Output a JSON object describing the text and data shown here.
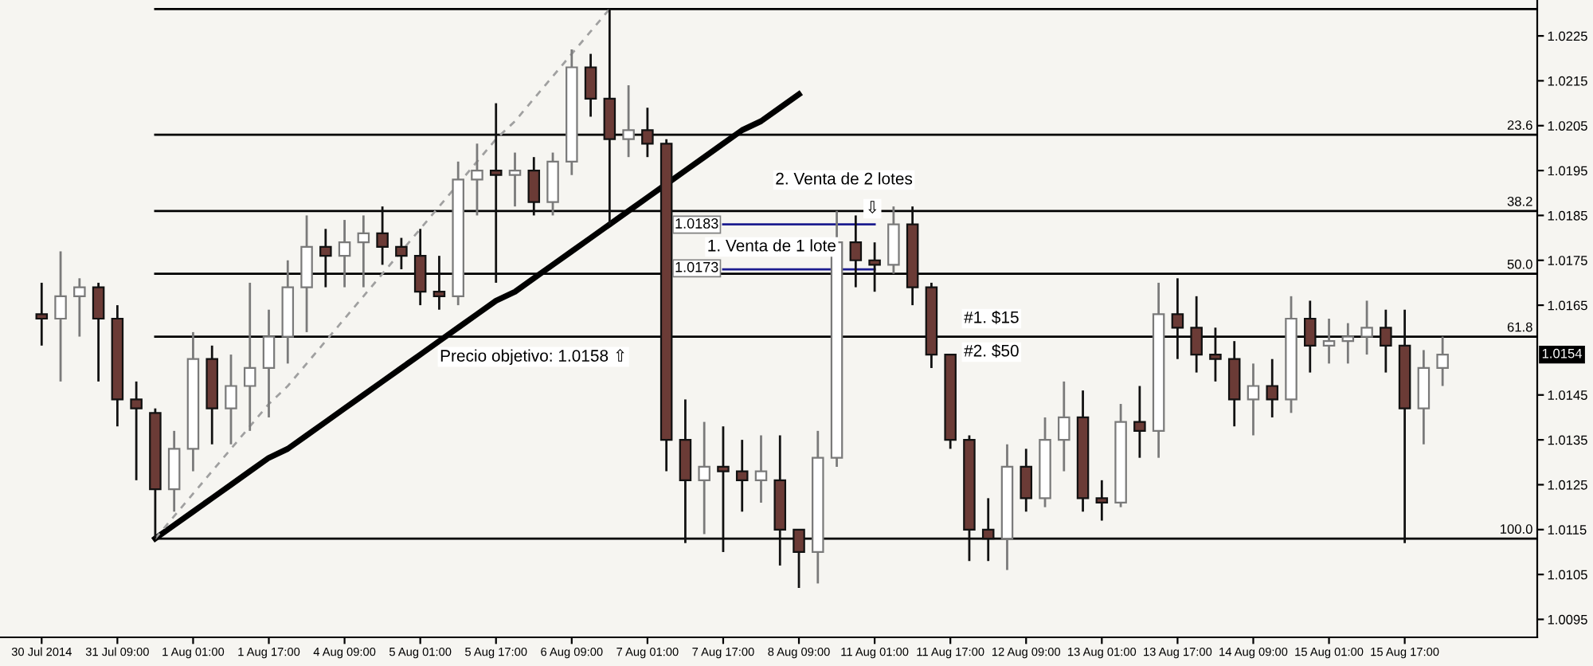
{
  "chart_data": {
    "type": "candlestick",
    "legend": "right",
    "categories": [
      "30 Jul 2014",
      null,
      null,
      null,
      "31 Jul 09:00",
      null,
      null,
      null,
      "1 Aug 01:00",
      null,
      null,
      null,
      "1 Aug 17:00",
      null,
      null,
      null,
      "4 Aug 09:00",
      null,
      null,
      null,
      "5 Aug 01:00",
      null,
      null,
      null,
      "5 Aug 17:00",
      null,
      null,
      null,
      "6 Aug 09:00",
      null,
      null,
      null,
      "7 Aug 01:00",
      null,
      null,
      null,
      "7 Aug 17:00",
      null,
      null,
      null,
      "8 Aug 09:00",
      null,
      null,
      null,
      "11 Aug 01:00",
      null,
      null,
      null,
      "11 Aug 17:00",
      null,
      null,
      null,
      "12 Aug 09:00",
      null,
      null,
      null,
      "13 Aug 01:00",
      null,
      null,
      null,
      "13 Aug 17:00",
      null,
      null,
      null,
      "14 Aug 09:00",
      null,
      null,
      null,
      "15 Aug 01:00",
      null,
      null,
      null,
      "15 Aug 17:00",
      null,
      null,
      null,
      null,
      null,
      null,
      null
    ],
    "ohlc": [
      [
        1.0163,
        1.017,
        1.0156,
        1.0162
      ],
      [
        1.0162,
        1.0177,
        1.0148,
        1.0167
      ],
      [
        1.0167,
        1.0171,
        1.0158,
        1.0169
      ],
      [
        1.0169,
        1.017,
        1.0148,
        1.0162
      ],
      [
        1.0162,
        1.0165,
        1.0138,
        1.0144
      ],
      [
        1.0144,
        1.0148,
        1.0126,
        1.0142
      ],
      [
        1.0141,
        1.0142,
        1.0113,
        1.0124
      ],
      [
        1.0124,
        1.0137,
        1.0119,
        1.0133
      ],
      [
        1.0133,
        1.0159,
        1.0128,
        1.0153
      ],
      [
        1.0153,
        1.0156,
        1.0134,
        1.0142
      ],
      [
        1.0142,
        1.0154,
        1.0134,
        1.0147
      ],
      [
        1.0147,
        1.017,
        1.0137,
        1.0151
      ],
      [
        1.0151,
        1.0164,
        1.014,
        1.0158
      ],
      [
        1.0158,
        1.0175,
        1.0152,
        1.0169
      ],
      [
        1.0169,
        1.0185,
        1.0159,
        1.0178
      ],
      [
        1.0178,
        1.0182,
        1.0169,
        1.0176
      ],
      [
        1.0176,
        1.0184,
        1.0169,
        1.0179
      ],
      [
        1.0179,
        1.0185,
        1.0169,
        1.0181
      ],
      [
        1.0181,
        1.0187,
        1.0174,
        1.0178
      ],
      [
        1.0178,
        1.018,
        1.0173,
        1.0176
      ],
      [
        1.0176,
        1.0182,
        1.0165,
        1.0168
      ],
      [
        1.0168,
        1.0176,
        1.0164,
        1.0167
      ],
      [
        1.0167,
        1.0197,
        1.0165,
        1.0193
      ],
      [
        1.0193,
        1.0201,
        1.0185,
        1.0195
      ],
      [
        1.0195,
        1.021,
        1.017,
        1.0194
      ],
      [
        1.0194,
        1.0199,
        1.0187,
        1.0195
      ],
      [
        1.0195,
        1.0198,
        1.0185,
        1.0188
      ],
      [
        1.0188,
        1.0199,
        1.0185,
        1.0197
      ],
      [
        1.0197,
        1.0222,
        1.0194,
        1.0218
      ],
      [
        1.0218,
        1.0221,
        1.0207,
        1.0211
      ],
      [
        1.0211,
        1.0231,
        1.0183,
        1.0202
      ],
      [
        1.0202,
        1.0214,
        1.0198,
        1.0204
      ],
      [
        1.0204,
        1.0209,
        1.0198,
        1.0201
      ],
      [
        1.0201,
        1.0202,
        1.0128,
        1.0135
      ],
      [
        1.0135,
        1.0144,
        1.0112,
        1.0126
      ],
      [
        1.0126,
        1.0139,
        1.0114,
        1.0129
      ],
      [
        1.0129,
        1.0138,
        1.011,
        1.0128
      ],
      [
        1.0128,
        1.0135,
        1.0119,
        1.0126
      ],
      [
        1.0126,
        1.0136,
        1.0121,
        1.0128
      ],
      [
        1.0126,
        1.0136,
        1.0107,
        1.0115
      ],
      [
        1.0115,
        1.0115,
        1.0102,
        1.011
      ],
      [
        1.011,
        1.0137,
        1.0103,
        1.0131
      ],
      [
        1.0131,
        1.0186,
        1.0129,
        1.0179
      ],
      [
        1.0179,
        1.0185,
        1.0169,
        1.0175
      ],
      [
        1.0175,
        1.0179,
        1.0168,
        1.0174
      ],
      [
        1.0174,
        1.0187,
        1.0172,
        1.0183
      ],
      [
        1.0183,
        1.0187,
        1.0165,
        1.0169
      ],
      [
        1.0169,
        1.017,
        1.0151,
        1.0154
      ],
      [
        1.0154,
        1.0154,
        1.0133,
        1.0135
      ],
      [
        1.0135,
        1.0136,
        1.0108,
        1.0115
      ],
      [
        1.0115,
        1.0122,
        1.0108,
        1.0113
      ],
      [
        1.0113,
        1.0134,
        1.0106,
        1.0129
      ],
      [
        1.0129,
        1.0133,
        1.0119,
        1.0122
      ],
      [
        1.0122,
        1.014,
        1.012,
        1.0135
      ],
      [
        1.0135,
        1.0148,
        1.0128,
        1.014
      ],
      [
        1.014,
        1.0146,
        1.0119,
        1.0122
      ],
      [
        1.0122,
        1.0126,
        1.0117,
        1.0121
      ],
      [
        1.0121,
        1.0143,
        1.012,
        1.0139
      ],
      [
        1.0139,
        1.0147,
        1.0131,
        1.0137
      ],
      [
        1.0137,
        1.017,
        1.0131,
        1.0163
      ],
      [
        1.0163,
        1.0171,
        1.0153,
        1.016
      ],
      [
        1.016,
        1.0167,
        1.015,
        1.0154
      ],
      [
        1.0154,
        1.016,
        1.0148,
        1.0153
      ],
      [
        1.0153,
        1.0157,
        1.0138,
        1.0144
      ],
      [
        1.0144,
        1.0152,
        1.0136,
        1.0147
      ],
      [
        1.0147,
        1.0153,
        1.014,
        1.0144
      ],
      [
        1.0144,
        1.0167,
        1.0141,
        1.0162
      ],
      [
        1.0162,
        1.0166,
        1.015,
        1.0156
      ],
      [
        1.0156,
        1.0162,
        1.0152,
        1.0157
      ],
      [
        1.0157,
        1.0161,
        1.0152,
        1.0158
      ],
      [
        1.0158,
        1.0166,
        1.0154,
        1.016
      ],
      [
        1.016,
        1.0164,
        1.015,
        1.0156
      ],
      [
        1.0156,
        1.0164,
        1.0112,
        1.0142
      ],
      [
        1.0142,
        1.0155,
        1.0134,
        1.0151
      ],
      [
        1.0151,
        1.0158,
        1.0147,
        1.0154
      ],
      null,
      null,
      null,
      null,
      null
    ],
    "colors": [
      "#6b3b36",
      "#ffffff",
      "#ffffff",
      "#6b3b36",
      "#6b3b36",
      "#6b3b36",
      "#6b3b36",
      "#ffffff",
      "#ffffff",
      "#6b3b36",
      "#ffffff",
      "#ffffff",
      "#ffffff",
      "#ffffff",
      "#ffffff",
      "#6b3b36",
      "#ffffff",
      "#ffffff",
      "#6b3b36",
      "#6b3b36",
      "#6b3b36",
      "#6b3b36",
      "#ffffff",
      "#ffffff",
      "#6b3b36",
      "#ffffff",
      "#6b3b36",
      "#ffffff",
      "#ffffff",
      "#6b3b36",
      "#6b3b36",
      "#ffffff",
      "#6b3b36",
      "#6b3b36",
      "#6b3b36",
      "#ffffff",
      "#6b3b36",
      "#6b3b36",
      "#ffffff",
      "#6b3b36",
      "#6b3b36",
      "#ffffff",
      "#ffffff",
      "#6b3b36",
      "#6b3b36",
      "#ffffff",
      "#6b3b36",
      "#6b3b36",
      "#6b3b36",
      "#6b3b36",
      "#6b3b36",
      "#ffffff",
      "#6b3b36",
      "#ffffff",
      "#ffffff",
      "#6b3b36",
      "#6b3b36",
      "#ffffff",
      "#6b3b36",
      "#ffffff",
      "#6b3b36",
      "#6b3b36",
      "#6b3b36",
      "#6b3b36",
      "#ffffff",
      "#6b3b36",
      "#ffffff",
      "#6b3b36",
      "#ffffff",
      "#ffffff",
      "#ffffff",
      "#6b3b36",
      "#6b3b36",
      "#ffffff",
      "#ffffff",
      null,
      null,
      null,
      null,
      null
    ],
    "series": [
      {
        "type": "line",
        "color": "#000000",
        "values": [
          null,
          null,
          null,
          null,
          null,
          null,
          1.0231,
          1.0231,
          1.0231,
          1.0231,
          1.0231,
          1.0231,
          1.0231,
          1.0231,
          1.0231,
          1.0231,
          1.0231,
          1.0231,
          1.0231,
          1.0231,
          1.0231,
          1.0231,
          1.0231,
          1.0231,
          1.0231,
          1.0231,
          1.0231,
          1.0231,
          1.0231,
          1.0231,
          1.0231,
          1.0231,
          1.0231,
          1.0231,
          1.0231,
          1.0231,
          1.0231,
          1.0231,
          1.0231,
          1.0231,
          1.0231,
          1.0231,
          1.0231,
          1.0231,
          1.0231,
          1.0231,
          1.0231,
          1.0231,
          1.0231,
          1.0231,
          1.0231,
          1.0231,
          1.0231,
          1.0231,
          1.0231,
          1.0231,
          1.0231,
          1.0231,
          1.0231,
          1.0231,
          1.0231,
          1.0231,
          1.0231,
          1.0231,
          1.0231,
          1.0231,
          1.0231,
          1.0231,
          1.0231,
          1.0231,
          1.0231,
          1.0231,
          1.0231,
          1.0231,
          1.0231,
          1.0231,
          1.0231,
          1.0231,
          1.0231,
          1.0231
        ]
      },
      {
        "type": "line",
        "name": "23.6",
        "color": "#000000",
        "values": [
          null,
          null,
          null,
          null,
          null,
          null,
          1.0203,
          1.0203,
          1.0203,
          1.0203,
          1.0203,
          1.0203,
          1.0203,
          1.0203,
          1.0203,
          1.0203,
          1.0203,
          1.0203,
          1.0203,
          1.0203,
          1.0203,
          1.0203,
          1.0203,
          1.0203,
          1.0203,
          1.0203,
          1.0203,
          1.0203,
          1.0203,
          1.0203,
          1.0203,
          1.0203,
          1.0203,
          1.0203,
          1.0203,
          1.0203,
          1.0203,
          1.0203,
          1.0203,
          1.0203,
          1.0203,
          1.0203,
          1.0203,
          1.0203,
          1.0203,
          1.0203,
          1.0203,
          1.0203,
          1.0203,
          1.0203,
          1.0203,
          1.0203,
          1.0203,
          1.0203,
          1.0203,
          1.0203,
          1.0203,
          1.0203,
          1.0203,
          1.0203,
          1.0203,
          1.0203,
          1.0203,
          1.0203,
          1.0203,
          1.0203,
          1.0203,
          1.0203,
          1.0203,
          1.0203,
          1.0203,
          1.0203,
          1.0203,
          1.0203,
          1.0203,
          1.0203,
          1.0203,
          1.0203,
          1.0203,
          1.0203
        ]
      },
      {
        "type": "line",
        "name": "38.2",
        "color": "#000000",
        "values": [
          null,
          null,
          null,
          null,
          null,
          null,
          1.0186,
          1.0186,
          1.0186,
          1.0186,
          1.0186,
          1.0186,
          1.0186,
          1.0186,
          1.0186,
          1.0186,
          1.0186,
          1.0186,
          1.0186,
          1.0186,
          1.0186,
          1.0186,
          1.0186,
          1.0186,
          1.0186,
          1.0186,
          1.0186,
          1.0186,
          1.0186,
          1.0186,
          1.0186,
          1.0186,
          1.0186,
          1.0186,
          1.0186,
          1.0186,
          1.0186,
          1.0186,
          1.0186,
          1.0186,
          1.0186,
          1.0186,
          1.0186,
          1.0186,
          1.0186,
          1.0186,
          1.0186,
          1.0186,
          1.0186,
          1.0186,
          1.0186,
          1.0186,
          1.0186,
          1.0186,
          1.0186,
          1.0186,
          1.0186,
          1.0186,
          1.0186,
          1.0186,
          1.0186,
          1.0186,
          1.0186,
          1.0186,
          1.0186,
          1.0186,
          1.0186,
          1.0186,
          1.0186,
          1.0186,
          1.0186,
          1.0186,
          1.0186,
          1.0186,
          1.0186,
          1.0186,
          1.0186,
          1.0186,
          1.0186,
          1.0186
        ]
      },
      {
        "type": "line",
        "name": "50.0",
        "color": "#000000",
        "values": [
          null,
          null,
          null,
          null,
          null,
          null,
          1.0172,
          1.0172,
          1.0172,
          1.0172,
          1.0172,
          1.0172,
          1.0172,
          1.0172,
          1.0172,
          1.0172,
          1.0172,
          1.0172,
          1.0172,
          1.0172,
          1.0172,
          1.0172,
          1.0172,
          1.0172,
          1.0172,
          1.0172,
          1.0172,
          1.0172,
          1.0172,
          1.0172,
          1.0172,
          1.0172,
          1.0172,
          1.0172,
          1.0172,
          1.0172,
          1.0172,
          1.0172,
          1.0172,
          1.0172,
          1.0172,
          1.0172,
          1.0172,
          1.0172,
          1.0172,
          1.0172,
          1.0172,
          1.0172,
          1.0172,
          1.0172,
          1.0172,
          1.0172,
          1.0172,
          1.0172,
          1.0172,
          1.0172,
          1.0172,
          1.0172,
          1.0172,
          1.0172,
          1.0172,
          1.0172,
          1.0172,
          1.0172,
          1.0172,
          1.0172,
          1.0172,
          1.0172,
          1.0172,
          1.0172,
          1.0172,
          1.0172,
          1.0172,
          1.0172,
          1.0172,
          1.0172,
          1.0172,
          1.0172,
          1.0172,
          1.0172
        ]
      },
      {
        "type": "line",
        "name": "61.8",
        "color": "#000000",
        "values": [
          null,
          null,
          null,
          null,
          null,
          null,
          1.0158,
          1.0158,
          1.0158,
          1.0158,
          1.0158,
          1.0158,
          1.0158,
          1.0158,
          1.0158,
          1.0158,
          1.0158,
          1.0158,
          1.0158,
          1.0158,
          1.0158,
          1.0158,
          1.0158,
          1.0158,
          1.0158,
          1.0158,
          1.0158,
          1.0158,
          1.0158,
          1.0158,
          1.0158,
          1.0158,
          1.0158,
          1.0158,
          1.0158,
          1.0158,
          1.0158,
          1.0158,
          1.0158,
          1.0158,
          1.0158,
          1.0158,
          1.0158,
          1.0158,
          1.0158,
          1.0158,
          1.0158,
          1.0158,
          1.0158,
          1.0158,
          1.0158,
          1.0158,
          1.0158,
          1.0158,
          1.0158,
          1.0158,
          1.0158,
          1.0158,
          1.0158,
          1.0158,
          1.0158,
          1.0158,
          1.0158,
          1.0158,
          1.0158,
          1.0158,
          1.0158,
          1.0158,
          1.0158,
          1.0158,
          1.0158,
          1.0158,
          1.0158,
          1.0158,
          1.0158,
          1.0158,
          1.0158,
          1.0158,
          1.0158,
          1.0158
        ]
      },
      {
        "type": "line",
        "name": "100.0",
        "color": "#000000",
        "values": [
          null,
          null,
          null,
          null,
          null,
          null,
          1.0113,
          1.0113,
          1.0113,
          1.0113,
          1.0113,
          1.0113,
          1.0113,
          1.0113,
          1.0113,
          1.0113,
          1.0113,
          1.0113,
          1.0113,
          1.0113,
          1.0113,
          1.0113,
          1.0113,
          1.0113,
          1.0113,
          1.0113,
          1.0113,
          1.0113,
          1.0113,
          1.0113,
          1.0113,
          1.0113,
          1.0113,
          1.0113,
          1.0113,
          1.0113,
          1.0113,
          1.0113,
          1.0113,
          1.0113,
          1.0113,
          1.0113,
          1.0113,
          1.0113,
          1.0113,
          1.0113,
          1.0113,
          1.0113,
          1.0113,
          1.0113,
          1.0113,
          1.0113,
          1.0113,
          1.0113,
          1.0113,
          1.0113,
          1.0113,
          1.0113,
          1.0113,
          1.0113,
          1.0113,
          1.0113,
          1.0113,
          1.0113,
          1.0113,
          1.0113,
          1.0113,
          1.0113,
          1.0113,
          1.0113,
          1.0113,
          1.0113,
          1.0113,
          1.0113,
          1.0113,
          1.0113,
          1.0113,
          1.0113,
          1.0113,
          1.0113
        ]
      },
      {
        "type": "line",
        "color": "#000000",
        "values": [
          null,
          null,
          null,
          null,
          null,
          null,
          1.0113,
          1.0116,
          1.0119,
          1.0122,
          1.0125,
          1.0128,
          1.0131,
          1.0133,
          1.0136,
          1.0139,
          1.0142,
          1.0145,
          1.0148,
          1.0151,
          1.0154,
          1.0157,
          1.016,
          1.0163,
          1.0166,
          1.0168,
          1.0171,
          1.0174,
          1.0177,
          1.018,
          1.0183,
          1.0186,
          1.0189,
          1.0192,
          1.0195,
          1.0198,
          1.0201,
          1.0204,
          1.0206,
          1.0209,
          1.0212,
          null,
          null,
          null,
          null,
          null,
          null,
          null,
          null,
          null,
          null,
          null,
          null,
          null,
          null,
          null,
          null,
          null,
          null,
          null,
          null,
          null,
          null,
          null,
          null,
          null,
          null,
          null,
          null,
          null,
          null,
          null,
          null,
          null,
          null,
          null,
          null,
          null,
          null,
          null
        ]
      },
      {
        "type": "line",
        "color": "#a0a0a0",
        "line_style": "dashed",
        "values": [
          null,
          null,
          null,
          null,
          null,
          null,
          1.0113,
          1.0118,
          1.0123,
          1.0128,
          1.0133,
          1.0138,
          1.0143,
          1.0147,
          1.0152,
          1.0157,
          1.0162,
          1.0167,
          1.0172,
          1.0177,
          1.0182,
          1.0187,
          1.0192,
          1.0197,
          1.0202,
          1.0206,
          1.0211,
          1.0216,
          1.0221,
          1.0226,
          1.0231,
          null,
          null,
          null,
          null,
          null,
          null,
          null,
          null,
          null,
          null,
          null,
          null,
          null,
          null,
          null,
          null,
          null,
          null,
          null,
          null,
          null,
          null,
          null,
          null,
          null,
          null,
          null,
          null,
          null,
          null,
          null,
          null,
          null,
          null,
          null,
          null,
          null,
          null,
          null,
          null,
          null,
          null,
          null,
          null,
          null,
          null,
          null,
          null,
          null
        ]
      },
      {
        "type": "line",
        "color": "#1c1c8f",
        "values": [
          null,
          null,
          null,
          null,
          null,
          null,
          null,
          null,
          null,
          null,
          null,
          null,
          null,
          null,
          null,
          null,
          null,
          null,
          null,
          null,
          null,
          null,
          null,
          null,
          null,
          null,
          null,
          null,
          null,
          null,
          null,
          null,
          null,
          null,
          null,
          null,
          1.0183,
          1.0183,
          1.0183,
          1.0183,
          1.0183,
          1.0183,
          1.0183,
          1.0183,
          1.0183,
          null,
          null,
          null,
          null,
          null,
          null,
          null,
          null,
          null,
          null,
          null,
          null,
          null,
          null,
          null,
          null,
          null,
          null,
          null,
          null,
          null,
          null,
          null,
          null,
          null,
          null,
          null,
          null,
          null,
          null,
          null,
          null,
          null,
          null,
          null
        ]
      },
      {
        "type": "line",
        "color": "#1c1c8f",
        "values": [
          null,
          null,
          null,
          null,
          null,
          null,
          null,
          null,
          null,
          null,
          null,
          null,
          null,
          null,
          null,
          null,
          null,
          null,
          null,
          null,
          null,
          null,
          null,
          null,
          null,
          null,
          null,
          null,
          null,
          null,
          null,
          null,
          null,
          null,
          null,
          null,
          1.0173,
          1.0173,
          1.0173,
          1.0173,
          1.0173,
          1.0173,
          1.0173,
          1.0173,
          1.0173,
          null,
          null,
          null,
          null,
          null,
          null,
          null,
          null,
          null,
          null,
          null,
          null,
          null,
          null,
          null,
          null,
          null,
          null,
          null,
          null,
          null,
          null,
          null,
          null,
          null,
          null,
          null,
          null,
          null,
          null,
          null,
          null,
          null,
          null,
          null
        ]
      }
    ],
    "annotations": [
      "2. Venta de 2 lotes",
      "⇩",
      "1. Venta de 1 lote",
      "1.0183",
      "1.0173",
      "#1. $15",
      "#2. $50",
      "Precio objetivo: 1.0158 ⇧",
      {
        "text": "1.0154",
        "y": 1.0154
      }
    ],
    "ylim": [
      1.0091,
      1.0233
    ],
    "yticks": [
      1.0095,
      1.0105,
      1.0115,
      1.0125,
      1.0135,
      1.0145,
      1.0165,
      1.0175,
      1.0185,
      1.0195,
      1.0205,
      1.0215,
      1.0225
    ]
  }
}
